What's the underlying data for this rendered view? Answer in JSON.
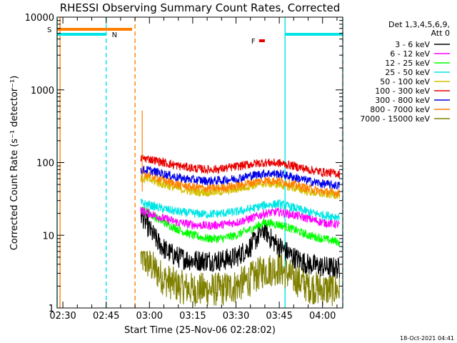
{
  "chart_data": {
    "type": "line",
    "title": "RHESSI Observing Summary Count Rates, Corrected",
    "xlabel": "Start Time (25-Nov-06 02:28:02)",
    "ylabel": "Corrected Count Rate (s⁻¹ detector⁻¹)",
    "y_scale": "log",
    "ylim": [
      1,
      10000
    ],
    "xlim": [
      "02:28",
      "04:07"
    ],
    "x_ticks": [
      "02:30",
      "02:45",
      "03:00",
      "03:15",
      "03:30",
      "03:45",
      "04:00"
    ],
    "y_ticks": [
      "1",
      "10",
      "100",
      "1000",
      "10000"
    ],
    "legend_header": [
      "Det 1,3,4,5,6,9,",
      "Att 0"
    ],
    "legend_position": "outside-right",
    "timestamp": "18-Oct-2021 04:41",
    "flags": [
      {
        "label": "S",
        "color": "#ff7f00",
        "start": "02:28",
        "end": "02:54"
      },
      {
        "label": "N",
        "color": "#00e5e5",
        "start": "02:28",
        "end": "02:45"
      },
      {
        "label": "N",
        "color": "#00e5e5",
        "start": "03:47",
        "end": "04:07"
      },
      {
        "label": "F",
        "color": "#e80000",
        "start": "03:38",
        "end": "03:40"
      }
    ],
    "vlines": [
      {
        "time": "02:28",
        "color": "#00e5e5",
        "style": "solid"
      },
      {
        "time": "02:29",
        "color": "#ff7f00",
        "style": "solid"
      },
      {
        "time": "02:45",
        "color": "#00e5e5",
        "style": "dashed"
      },
      {
        "time": "02:55",
        "color": "#ff7f00",
        "style": "dashed"
      },
      {
        "time": "03:47",
        "color": "#00e5e5",
        "style": "solid"
      },
      {
        "time": "04:07",
        "color": "#00e5e5",
        "style": "dashed"
      }
    ],
    "data_start": "02:57",
    "data_end": "04:06",
    "series": [
      {
        "name": "3 - 6 keV",
        "color": "#000000",
        "x": [
          "02:57",
          "03:00",
          "03:03",
          "03:06",
          "03:10",
          "03:15",
          "03:20",
          "03:25",
          "03:30",
          "03:35",
          "03:38",
          "03:40",
          "03:42",
          "03:45",
          "03:50",
          "03:55",
          "04:00",
          "04:06"
        ],
        "values": [
          20,
          12,
          8,
          6,
          5,
          4.5,
          4.5,
          4.5,
          5,
          7,
          10,
          12,
          9,
          7,
          5,
          4,
          3.7,
          3.5
        ]
      },
      {
        "name": "6 - 12 keV",
        "color": "#ff00ff",
        "x": [
          "02:57",
          "03:00",
          "03:05",
          "03:10",
          "03:15",
          "03:20",
          "03:25",
          "03:30",
          "03:35",
          "03:40",
          "03:45",
          "03:50",
          "03:55",
          "04:00",
          "04:06"
        ],
        "values": [
          22,
          20,
          17,
          15,
          14,
          13.5,
          14,
          15,
          17,
          20,
          21,
          19,
          17,
          15,
          14
        ]
      },
      {
        "name": "12 - 25 keV",
        "color": "#00ff00",
        "x": [
          "02:57",
          "03:00",
          "03:05",
          "03:10",
          "03:15",
          "03:20",
          "03:25",
          "03:30",
          "03:35",
          "03:40",
          "03:45",
          "03:50",
          "03:55",
          "04:00",
          "04:06"
        ],
        "values": [
          24,
          20,
          15,
          12,
          10,
          9,
          9,
          10,
          12,
          15,
          14,
          12,
          10,
          9,
          8
        ]
      },
      {
        "name": "25 - 50 keV",
        "color": "#00e5e5",
        "x": [
          "02:57",
          "03:00",
          "03:05",
          "03:10",
          "03:15",
          "03:20",
          "03:25",
          "03:30",
          "03:35",
          "03:40",
          "03:45",
          "03:50",
          "03:55",
          "04:00",
          "04:06"
        ],
        "values": [
          28,
          26,
          23,
          21,
          20,
          19.5,
          20,
          21,
          23,
          26,
          27,
          24,
          21,
          19,
          18
        ]
      },
      {
        "name": "50 - 100 keV",
        "color": "#d4c000",
        "x": [
          "02:57",
          "03:00",
          "03:05",
          "03:10",
          "03:15",
          "03:20",
          "03:25",
          "03:30",
          "03:35",
          "03:40",
          "03:45",
          "03:50",
          "03:55",
          "04:00",
          "04:06"
        ],
        "values": [
          60,
          58,
          50,
          44,
          40,
          39,
          40,
          43,
          48,
          52,
          50,
          45,
          40,
          37,
          36
        ]
      },
      {
        "name": "100 - 300 keV",
        "color": "#e80000",
        "x": [
          "02:57",
          "03:00",
          "03:05",
          "03:10",
          "03:15",
          "03:20",
          "03:25",
          "03:30",
          "03:35",
          "03:40",
          "03:45",
          "03:50",
          "03:55",
          "04:00",
          "04:06"
        ],
        "values": [
          115,
          112,
          100,
          90,
          84,
          80,
          82,
          88,
          95,
          100,
          98,
          90,
          80,
          74,
          70
        ]
      },
      {
        "name": "300 - 800 keV",
        "color": "#0000e8",
        "x": [
          "02:57",
          "03:00",
          "03:05",
          "03:10",
          "03:15",
          "03:20",
          "03:25",
          "03:30",
          "03:35",
          "03:40",
          "03:45",
          "03:50",
          "03:55",
          "04:00",
          "04:06"
        ],
        "values": [
          80,
          78,
          70,
          62,
          58,
          56,
          57,
          60,
          66,
          71,
          70,
          63,
          56,
          51,
          48
        ]
      },
      {
        "name": "800 - 7000 keV",
        "color": "#ff7f00",
        "x": [
          "02:57",
          "03:00",
          "03:05",
          "03:10",
          "03:15",
          "03:20",
          "03:25",
          "03:30",
          "03:35",
          "03:40",
          "03:45",
          "03:50",
          "03:55",
          "04:00",
          "04:06"
        ],
        "values": [
          70,
          68,
          57,
          50,
          46,
          44,
          45,
          48,
          53,
          57,
          56,
          50,
          44,
          40,
          38
        ]
      },
      {
        "name": "7000 - 15000 keV",
        "color": "#808000",
        "x": [
          "02:57",
          "03:00",
          "03:05",
          "03:10",
          "03:15",
          "03:20",
          "03:25",
          "03:30",
          "03:35",
          "03:40",
          "03:45",
          "03:50",
          "03:55",
          "04:00",
          "04:06"
        ],
        "values": [
          5,
          4,
          2.5,
          2,
          1.8,
          1.8,
          1.8,
          2,
          2.5,
          3.3,
          3.5,
          2.6,
          2,
          1.8,
          1.8
        ]
      }
    ]
  }
}
